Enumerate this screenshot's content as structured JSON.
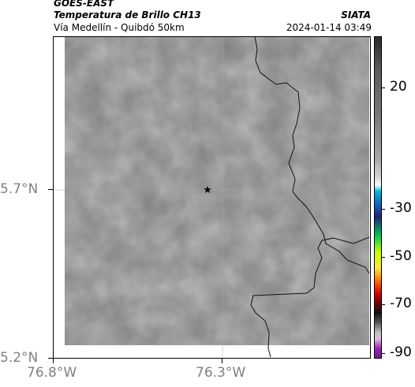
{
  "header": {
    "source": "GOES-EAST",
    "product": "Temperatura de Brillo CH13",
    "org": "SIATA",
    "area": "Vía Medellín - Quibdó 50km",
    "datetime": "2024-01-14 03:49"
  },
  "map": {
    "y_ticks": [
      "5.7°N",
      "5.2°N"
    ],
    "x_ticks": [
      "76.8°W",
      "76.3°W"
    ],
    "marker": "star-icon",
    "field_color": "#7f7f7f",
    "border_color": "#111111"
  },
  "colorbar": {
    "ticks": [
      "20",
      "-30",
      "-50",
      "-70",
      "-90"
    ],
    "colors": [
      "#2b2b2b",
      "#7a7a7a",
      "#d8d8d8",
      "#00bcd4",
      "#1a237e",
      "#00c853",
      "#ffeb3b",
      "#ff6d00",
      "#d50000",
      "#111111",
      "#bdbdbd",
      "#9c27b0"
    ]
  }
}
